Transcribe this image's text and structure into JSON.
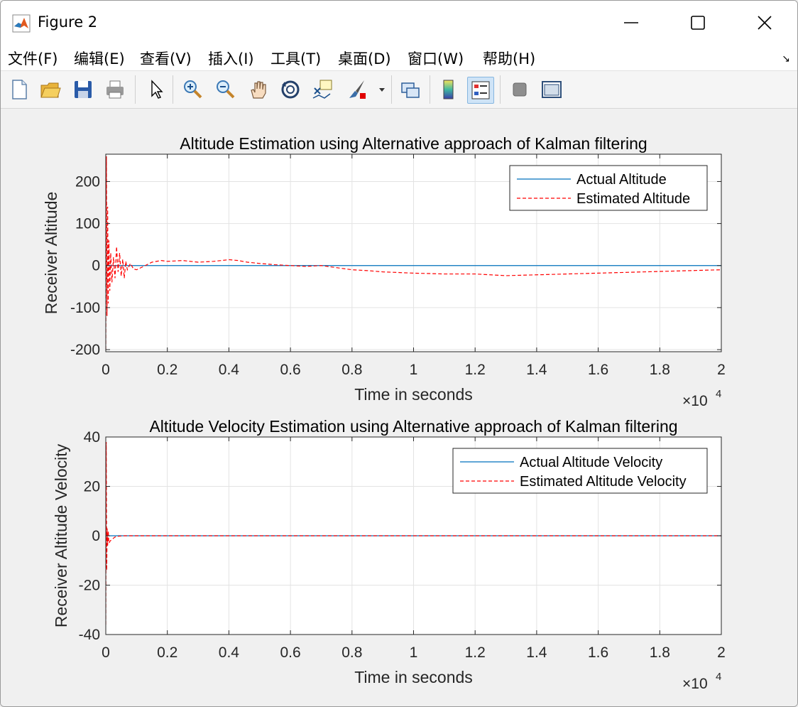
{
  "window": {
    "title": "Figure 2"
  },
  "menu": {
    "items": [
      "文件(F)",
      "编辑(E)",
      "查看(V)",
      "插入(I)",
      "工具(T)",
      "桌面(D)",
      "窗口(W)",
      "帮助(H)"
    ]
  },
  "toolbar": {
    "buttons": [
      {
        "icon": "new-figure-icon"
      },
      {
        "icon": "open-file-icon"
      },
      {
        "icon": "save-icon"
      },
      {
        "icon": "print-icon"
      },
      {
        "icon": "edit-plot-arrow-icon"
      },
      {
        "icon": "zoom-in-icon"
      },
      {
        "icon": "zoom-out-icon"
      },
      {
        "icon": "pan-hand-icon"
      },
      {
        "icon": "rotate-3d-icon"
      },
      {
        "icon": "data-cursor-icon"
      },
      {
        "icon": "brush-icon"
      },
      {
        "icon": "link-plot-icon"
      },
      {
        "icon": "colorbar-icon"
      },
      {
        "icon": "legend-icon"
      },
      {
        "icon": "hide-plot-tools-icon"
      },
      {
        "icon": "show-plot-tools-icon"
      }
    ]
  },
  "colors": {
    "actual": "#0072bd",
    "estimated": "#ff0000",
    "grid": "#e3e3e3",
    "axes_bg": "#ffffff"
  },
  "chart_data": [
    {
      "type": "line",
      "title": "Altitude Estimation using Alternative approach of Kalman filtering",
      "xlabel": "Time in seconds",
      "ylabel": "Receiver Altitude",
      "x_exponent_label": "×10",
      "x_exponent": "4",
      "xlim": [
        0,
        20000
      ],
      "ylim": [
        -205,
        265
      ],
      "xticks": [
        0,
        2000,
        4000,
        6000,
        8000,
        10000,
        12000,
        14000,
        16000,
        18000,
        20000
      ],
      "xtick_labels": [
        "0",
        "0.2",
        "0.4",
        "0.6",
        "0.8",
        "1",
        "1.2",
        "1.4",
        "1.6",
        "1.8",
        "2"
      ],
      "yticks": [
        -200,
        -100,
        0,
        100,
        200
      ],
      "ytick_labels": [
        "-200",
        "-100",
        "0",
        "100",
        "200"
      ],
      "grid": true,
      "legend_position": "top-right",
      "series": [
        {
          "name": "Actual Altitude",
          "style": "solid",
          "x": [
            0,
            20000
          ],
          "y": [
            0,
            0
          ]
        },
        {
          "name": "Estimated Altitude",
          "style": "dashed",
          "x": [
            0,
            20,
            40,
            60,
            80,
            100,
            130,
            160,
            200,
            250,
            300,
            350,
            400,
            450,
            500,
            550,
            600,
            650,
            700,
            800,
            900,
            1000,
            1200,
            1500,
            1800,
            2000,
            2500,
            3000,
            3500,
            4000,
            4300,
            4600,
            5000,
            5500,
            6000,
            6500,
            7000,
            7500,
            8000,
            8500,
            9000,
            10000,
            11000,
            12000,
            12500,
            13000,
            13500,
            14000,
            15000,
            16000,
            17000,
            18000,
            19000,
            20000
          ],
          "y": [
            -200,
            260,
            -120,
            140,
            -90,
            60,
            -60,
            30,
            -40,
            20,
            -30,
            45,
            -15,
            30,
            -25,
            15,
            -30,
            10,
            -10,
            5,
            -8,
            -10,
            -3,
            8,
            12,
            10,
            12,
            8,
            10,
            14,
            12,
            8,
            5,
            2,
            0,
            -2,
            0,
            -5,
            -10,
            -12,
            -15,
            -18,
            -20,
            -20,
            -22,
            -24,
            -23,
            -22,
            -20,
            -18,
            -16,
            -14,
            -12,
            -10
          ]
        }
      ]
    },
    {
      "type": "line",
      "title": "Altitude Velocity Estimation using Alternative approach of Kalman filtering",
      "xlabel": "Time in seconds",
      "ylabel": "Receiver Altitude Velocity",
      "x_exponent_label": "×10",
      "x_exponent": "4",
      "xlim": [
        0,
        20000
      ],
      "ylim": [
        -40,
        40
      ],
      "xticks": [
        0,
        2000,
        4000,
        6000,
        8000,
        10000,
        12000,
        14000,
        16000,
        18000,
        20000
      ],
      "xtick_labels": [
        "0",
        "0.2",
        "0.4",
        "0.6",
        "0.8",
        "1",
        "1.2",
        "1.4",
        "1.6",
        "1.8",
        "2"
      ],
      "yticks": [
        -40,
        -20,
        0,
        20,
        40
      ],
      "ytick_labels": [
        "-40",
        "-20",
        "0",
        "20",
        "40"
      ],
      "grid": true,
      "legend_position": "top-right",
      "series": [
        {
          "name": "Actual Altitude Velocity",
          "style": "solid",
          "x": [
            0,
            20000
          ],
          "y": [
            0,
            0
          ]
        },
        {
          "name": "Estimated Altitude Velocity",
          "style": "dashed",
          "x": [
            0,
            15,
            30,
            45,
            60,
            80,
            100,
            150,
            200,
            300,
            400,
            600,
            1000,
            20000
          ],
          "y": [
            -36,
            38,
            -14,
            3,
            -4,
            2,
            -3,
            -2,
            -1.5,
            -0.5,
            -0.2,
            0,
            0,
            0
          ]
        }
      ]
    }
  ]
}
